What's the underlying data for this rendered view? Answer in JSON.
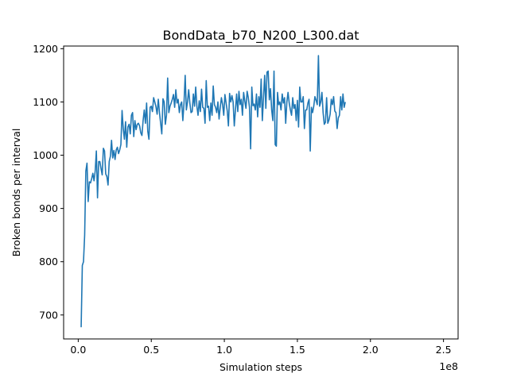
{
  "chart_data": {
    "type": "line",
    "title": "BondData_b70_N200_L300.dat",
    "xlabel": "Simulation steps",
    "ylabel": "Broken bonds per interval",
    "x_offset_label": "1e8",
    "x_scale": 100000000,
    "xlim": [
      -0.1,
      2.6
    ],
    "ylim": [
      655,
      1205
    ],
    "xticks": [
      0.0,
      0.5,
      1.0,
      1.5,
      2.0,
      2.5
    ],
    "xtick_labels": [
      "0.0",
      "0.5",
      "1.0",
      "1.5",
      "2.0",
      "2.5"
    ],
    "yticks": [
      700,
      800,
      900,
      1000,
      1100,
      1200
    ],
    "ytick_labels": [
      "700",
      "800",
      "900",
      "1000",
      "1100",
      "1200"
    ],
    "grid": false,
    "line_color": "#1f77b4",
    "series": [
      {
        "x_start": 0.02,
        "x_step": 0.008,
        "values": [
          677,
          793,
          800,
          850,
          970,
          985,
          913,
          950,
          948,
          956,
          966,
          952,
          970,
          1008,
          920,
          988,
          988,
          975,
          963,
          1013,
          1008,
          965,
          960,
          944,
          988,
          998,
          1028,
          995,
          1009,
          992,
          1010,
          1015,
          1003,
          1010,
          1020,
          1084,
          1050,
          1030,
          1063,
          1015,
          1053,
          1058,
          1040,
          1075,
          1080,
          1035,
          1065,
          1048,
          1058,
          1060,
          1055,
          1042,
          1037,
          1065,
          1085,
          1060,
          1098,
          1045,
          1030,
          1090,
          1092,
          1082,
          1108,
          1100,
          1091,
          1077,
          1105,
          1080,
          1060,
          1040,
          1106,
          1100,
          1058,
          1075,
          1145,
          1080,
          1092,
          1098,
          1105,
          1114,
          1090,
          1123,
          1098,
          1105,
          1080,
          1095,
          1100,
          1065,
          1098,
          1150,
          1085,
          1100,
          1123,
          1098,
          1080,
          1082,
          1115,
          1092,
          1128,
          1092,
          1075,
          1102,
          1082,
          1124,
          1090,
          1088,
          1060,
          1140,
          1090,
          1092,
          1065,
          1098,
          1075,
          1130,
          1095,
          1090,
          1080,
          1100,
          1068,
          1090,
          1108,
          1095,
          1075,
          1114,
          1098,
          1083,
          1055,
          1116,
          1100,
          1112,
          1100,
          1055,
          1085,
          1115,
          1082,
          1120,
          1095,
          1105,
          1075,
          1118,
          1102,
          1088,
          1120,
          1108,
          1090,
          1012,
          1128,
          1093,
          1096,
          1085,
          1115,
          1072,
          1110,
          1090,
          1143,
          1065,
          1108,
          1150,
          1088,
          1156,
          1158,
          1104,
          1125,
          1085,
          1065,
          1158,
          1020,
          1017,
          1118,
          1095,
          1100,
          1085,
          1115,
          1098,
          1108,
          1060,
          1100,
          1118,
          1098,
          1085,
          1075,
          1108,
          1088,
          1095,
          1065,
          1103,
          1053,
          1128,
          1100,
          1100,
          1110,
          1050,
          1085,
          1085,
          1098,
          1105,
          1008,
          1090,
          1080,
          1092,
          1110,
          1103,
          1095,
          1187,
          1092,
          1100,
          1118,
          1080,
          1058,
          1062,
          1108,
          1060,
          1066,
          1077,
          1105,
          1095,
          1110,
          1083,
          1080,
          1050,
          1070,
          1075,
          1110,
          1085,
          1115,
          1090,
          1100
        ]
      }
    ]
  }
}
